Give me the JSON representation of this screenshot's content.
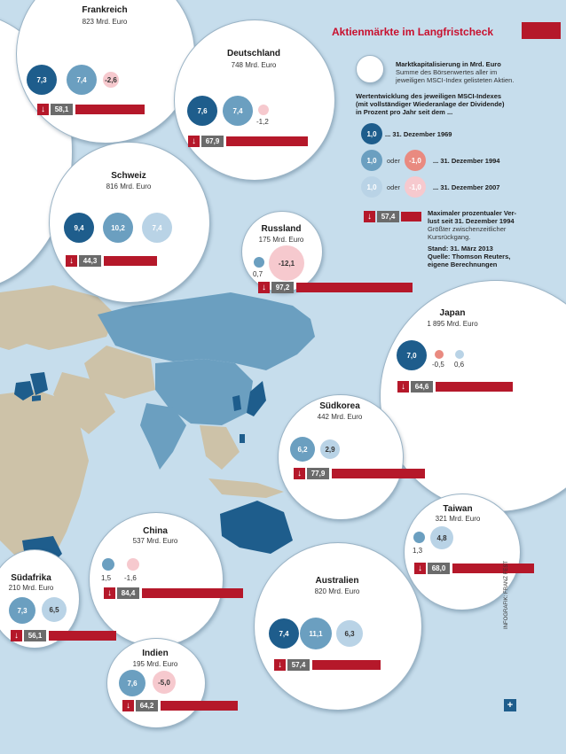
{
  "header": {
    "title": "Aktienmärkte im Langfristcheck"
  },
  "legend": {
    "circle_line1": "Marktkapitalisierung in Mrd. Euro",
    "circle_line2": "Summe des Börsenwertes aller im",
    "circle_line3": "jeweiligen MSCI-Index gelisteten Aktien.",
    "perf_line1": "Wertentwicklung des jeweiligen MSCI-Indexes",
    "perf_line2": "(mit vollständiger Wiederanlage der Dividende)",
    "perf_line3": "in Prozent pro Jahr seit dem ...",
    "example1": "1,0",
    "example2": "-1,0",
    "oder": "oder",
    "period1": "... 31. Dezember 1969",
    "period2": "... 31. Dezember 1994",
    "period3": "... 31. Dezember 2007",
    "max_value": "57,4",
    "max_line1": "Maximaler prozentualer Ver-",
    "max_line2": "lust seit 31. Dezember 1994",
    "max_line3": "Größter zwischenzeitlicher",
    "max_line4": "Kursrückgang.",
    "source_line1": "Stand: 31. März 2013",
    "source_line2": "Quelle: Thomson Reuters,",
    "source_line3": "eigene Berechnungen"
  },
  "countries": {
    "frankreich": {
      "name": "Frankreich",
      "cap": "823 Mrd. Euro",
      "v1969": "7,3",
      "v1994": "7,4",
      "v2007": "-2,6",
      "max_loss": "58,1",
      "max_loss_pct": 58.1
    },
    "deutschland": {
      "name": "Deutschland",
      "cap": "748 Mrd. Euro",
      "v1969": "7,6",
      "v1994": "7,4",
      "v2007": "-1,2",
      "max_loss": "67,9",
      "max_loss_pct": 67.9
    },
    "schweiz": {
      "name": "Schweiz",
      "cap": "816 Mrd. Euro",
      "v1969": "9,4",
      "v1994": "10,2",
      "v2007": "7,4",
      "max_loss": "44,3",
      "max_loss_pct": 44.3
    },
    "russland": {
      "name": "Russland",
      "cap": "175 Mrd. Euro",
      "v1994": "0,7",
      "v2007": "-12,1",
      "max_loss": "97,2",
      "max_loss_pct": 97.2
    },
    "japan": {
      "name": "Japan",
      "cap": "1 895 Mrd. Euro",
      "v1969": "7,0",
      "v1994": "-0,5",
      "v2007": "0,6",
      "max_loss": "64,6",
      "max_loss_pct": 64.6
    },
    "suedkorea": {
      "name": "Südkorea",
      "cap": "442 Mrd. Euro",
      "v1994": "6,2",
      "v2007": "2,9",
      "max_loss": "77,9",
      "max_loss_pct": 77.9
    },
    "taiwan": {
      "name": "Taiwan",
      "cap": "321 Mrd. Euro",
      "v1994": "1,3",
      "v2007": "4,8",
      "max_loss": "68,0",
      "max_loss_pct": 68.0
    },
    "china": {
      "name": "China",
      "cap": "537 Mrd. Euro",
      "v1994": "1,5",
      "v2007": "-1,6",
      "max_loss": "84,4",
      "max_loss_pct": 84.4
    },
    "suedafrika": {
      "name": "Südafrika",
      "cap": "210 Mrd. Euro",
      "v1994": "7,3",
      "v2007": "6,5",
      "max_loss": "56,1",
      "max_loss_pct": 56.1
    },
    "australien": {
      "name": "Australien",
      "cap": "820 Mrd. Euro",
      "v1969": "7,4",
      "v1994": "11,1",
      "v2007": "6,3",
      "max_loss": "57,4",
      "max_loss_pct": 57.4
    },
    "indien": {
      "name": "Indien",
      "cap": "195 Mrd. Euro",
      "v1994": "7,6",
      "v2007": "-5,0",
      "max_loss": "64,2",
      "max_loss_pct": 64.2
    }
  },
  "credit": "INFOGRAFIK: FRANZ FEST",
  "colors": {
    "accent_red": "#b5182a",
    "title_red": "#c8102e",
    "dark_blue": "#1e5d8c",
    "mid_blue": "#6b9fc0",
    "light_blue": "#b9d3e6",
    "negative_mid": "#e98a80",
    "negative_light": "#f6c9ce",
    "land": "#cdc2a8",
    "ocean": "#c6ddec",
    "grey_box": "#6b6b6b"
  }
}
